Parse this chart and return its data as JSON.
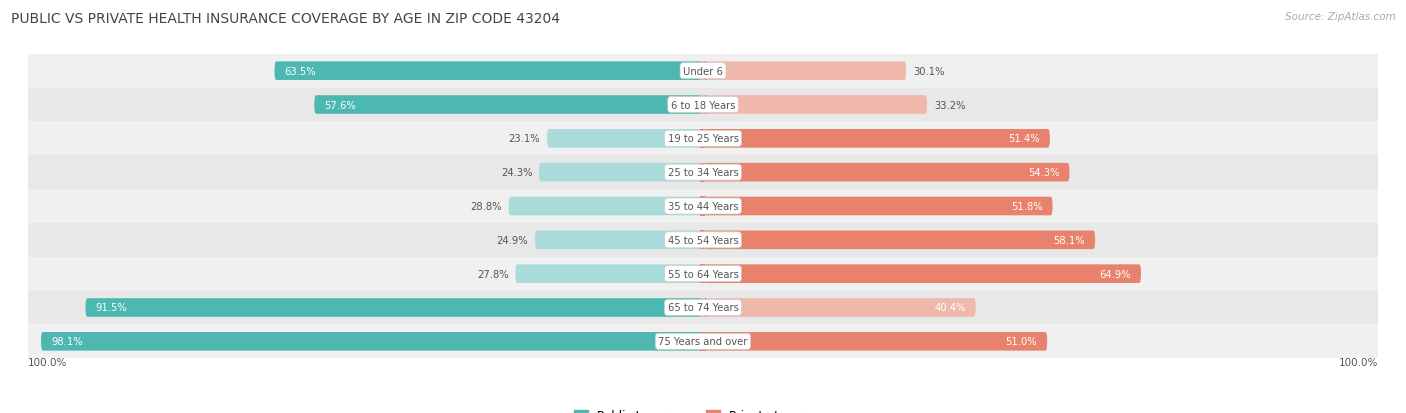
{
  "title": "PUBLIC VS PRIVATE HEALTH INSURANCE COVERAGE BY AGE IN ZIP CODE 43204",
  "source": "Source: ZipAtlas.com",
  "categories": [
    "Under 6",
    "6 to 18 Years",
    "19 to 25 Years",
    "25 to 34 Years",
    "35 to 44 Years",
    "45 to 54 Years",
    "55 to 64 Years",
    "65 to 74 Years",
    "75 Years and over"
  ],
  "public_values": [
    63.5,
    57.6,
    23.1,
    24.3,
    28.8,
    24.9,
    27.8,
    91.5,
    98.1
  ],
  "private_values": [
    30.1,
    33.2,
    51.4,
    54.3,
    51.8,
    58.1,
    64.9,
    40.4,
    51.0
  ],
  "public_color": "#4db8b2",
  "private_color": "#e8826c",
  "public_color_light": "#a8dbd9",
  "private_color_light": "#f0b8aa",
  "row_bg_colors": [
    "#f0f0f0",
    "#e8e8e8"
  ],
  "title_color": "#444444",
  "text_color": "#555555",
  "center_label_color": "#555555",
  "max_value": 100.0,
  "bar_height": 0.55,
  "figsize": [
    14.06,
    4.14
  ],
  "dpi": 100,
  "value_inside_threshold": 35
}
